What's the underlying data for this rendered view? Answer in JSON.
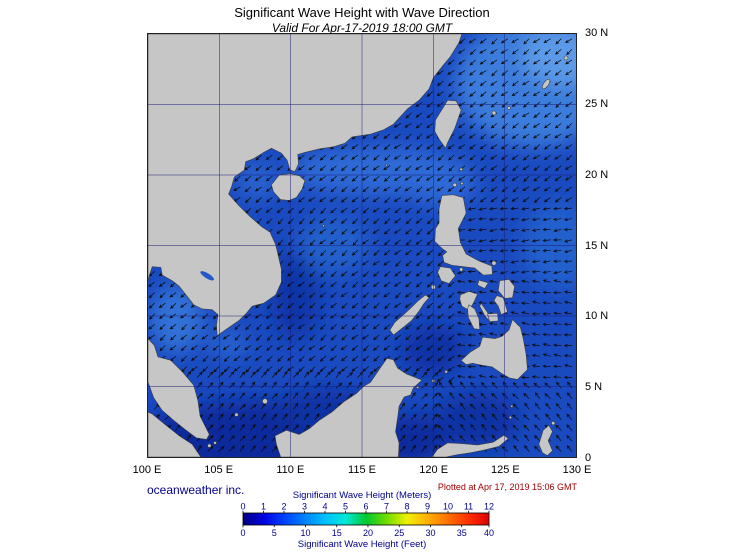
{
  "title": "Significant Wave Height with Wave Direction",
  "subtitle": "Valid For Apr-17-2019 18:00 GMT",
  "credit": "oceanweather inc.",
  "plotted_note": "Plotted at Apr 17, 2019 15:06 GMT",
  "colors": {
    "credit_text": "#00008B",
    "plotted_text": "#A00000",
    "title_text": "#000000"
  },
  "map": {
    "lon_min": 100,
    "lon_max": 130,
    "lat_min": 0,
    "lat_max": 30,
    "grid_step_deg": 5,
    "x_tick_labels": [
      "100 E",
      "105 E",
      "110 E",
      "115 E",
      "120 E",
      "125 E",
      "130 E"
    ],
    "y_tick_labels": [
      "0",
      "5 N",
      "10 N",
      "15 N",
      "20 N",
      "25 N",
      "30 N"
    ],
    "colors": {
      "ocean_base": "#1A4AC0",
      "land": "#C6C6C6",
      "coast": "#3A3A3A",
      "grid": "#1B1B78",
      "arrow": "#0A0A0A",
      "frame": "#222222"
    }
  },
  "wave_field": {
    "arrow_spacing_deg": 0.75,
    "arrow_len_deg": 0.5,
    "head_len_deg": 0.2,
    "head_angle_deg": 26,
    "jitter_deg": 16,
    "default_dir_to_deg": 230,
    "zones": [
      {
        "region": "north-scs-and-taiwan",
        "lat_min": 18,
        "lat_max": 30,
        "lon_min": 100,
        "lon_max": 130,
        "dir_to_deg": 232
      },
      {
        "region": "philippine-sea-north",
        "lat_min": 13,
        "lat_max": 18,
        "lon_min": 121,
        "lon_max": 130,
        "dir_to_deg": 262
      },
      {
        "region": "philippine-sea-south",
        "lat_min": 5,
        "lat_max": 13,
        "lon_min": 121.5,
        "lon_max": 130,
        "dir_to_deg": 278
      },
      {
        "region": "central-scs",
        "lat_min": 6,
        "lat_max": 18,
        "lon_min": 100,
        "lon_max": 121.5,
        "dir_to_deg": 228
      },
      {
        "region": "south-scs",
        "lat_min": 0,
        "lat_max": 6,
        "lon_min": 100,
        "lon_max": 120,
        "dir_to_deg": 42
      },
      {
        "region": "celebes-molucca",
        "lat_min": 0,
        "lat_max": 5,
        "lon_min": 120,
        "lon_max": 130,
        "dir_to_deg": 318
      }
    ]
  },
  "legend": {
    "title_meters": "Significant Wave Height (Meters)",
    "title_feet": "Significant Wave Height (Feet)",
    "meter_ticks": [
      0,
      1,
      2,
      3,
      4,
      5,
      6,
      7,
      8,
      9,
      10,
      11,
      12
    ],
    "feet_ticks": [
      0,
      5,
      10,
      15,
      20,
      25,
      30,
      35,
      40
    ],
    "meters_to_feet": 3.2808,
    "text_color": "#00008B",
    "gradient_stops": [
      {
        "v": 0,
        "c": "#000080"
      },
      {
        "v": 1,
        "c": "#0000E0"
      },
      {
        "v": 2,
        "c": "#0040FF"
      },
      {
        "v": 3,
        "c": "#0080FF"
      },
      {
        "v": 4,
        "c": "#00C0FF"
      },
      {
        "v": 5,
        "c": "#00E8D8"
      },
      {
        "v": 6,
        "c": "#00C830"
      },
      {
        "v": 7,
        "c": "#70DC00"
      },
      {
        "v": 8,
        "c": "#F0F000"
      },
      {
        "v": 9,
        "c": "#FFB000"
      },
      {
        "v": 10,
        "c": "#FF7000"
      },
      {
        "v": 11,
        "c": "#FF3000"
      },
      {
        "v": 12,
        "c": "#DE0000"
      }
    ]
  }
}
